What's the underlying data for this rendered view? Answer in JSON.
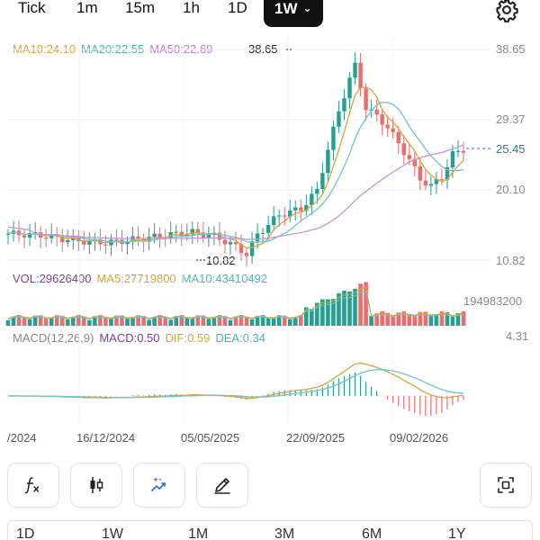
{
  "intervals": [
    {
      "label": "Tick",
      "active": false
    },
    {
      "label": "1m",
      "active": false
    },
    {
      "label": "15m",
      "active": false
    },
    {
      "label": "1h",
      "active": false
    },
    {
      "label": "1D",
      "active": false
    },
    {
      "label": "1W",
      "active": true
    }
  ],
  "ma_legend": {
    "ma10": "MA10:24.10",
    "ma20": "MA20:22.55",
    "ma50": "MA50:22.69"
  },
  "price_axis": [
    "38.65",
    "29.37",
    "20.10",
    "10.82"
  ],
  "high_label": "38.65",
  "low_label": "10.82",
  "current_price": "25.45",
  "vol_legend": {
    "vol": "VOL:29626400",
    "ma5": "MA5:27719800",
    "ma10": "MA10:43410492"
  },
  "vol_axis_max": "194983200",
  "macd_legend": {
    "name": "MACD(12,26,9)",
    "macd": "MACD:0.50",
    "dif": "DIF:0.59",
    "dea": "DEA:0.34"
  },
  "macd_axis_max": "4.31",
  "dates": [
    "/2024",
    "16/12/2024",
    "05/05/2025",
    "22/09/2025",
    "09/02/2026"
  ],
  "tools": [
    {
      "name": "indicator-fx-icon"
    },
    {
      "name": "candlestick-type-icon"
    },
    {
      "name": "ai-analysis-icon"
    },
    {
      "name": "drawing-pencil-icon"
    },
    {
      "name": "screenshot-icon"
    }
  ],
  "ranges": [
    "1D",
    "1W",
    "1M",
    "3M",
    "6M",
    "1Y"
  ],
  "colors": {
    "up": "#2a9d8f",
    "down": "#e76f6f",
    "ma10": "#d9a43a",
    "ma20": "#6fc7c2",
    "ma50": "#c496d8",
    "macd": "#7b3fa0",
    "dif": "#d9a43a",
    "dea": "#6fc7c2"
  },
  "chart_data": {
    "type": "candlestick",
    "x": [
      "/2024",
      "16/12/2024",
      "05/05/2025",
      "22/09/2025",
      "09/02/2026"
    ],
    "price_axis_ticks": [
      38.65,
      29.37,
      20.1,
      10.82
    ],
    "high": 38.65,
    "low": 10.82,
    "last": 25.45,
    "series": [
      {
        "name": "MA10",
        "last": 24.1
      },
      {
        "name": "MA20",
        "last": 22.55
      },
      {
        "name": "MA50",
        "last": 22.69
      },
      {
        "name": "VOL",
        "last": 29626400
      },
      {
        "name": "MA5",
        "last": 27719800
      },
      {
        "name": "MA10",
        "last": 43410492
      },
      {
        "name": "MACD",
        "last": 0.5
      },
      {
        "name": "DIF",
        "last": 0.59
      },
      {
        "name": "DEA",
        "last": 0.34
      }
    ]
  }
}
